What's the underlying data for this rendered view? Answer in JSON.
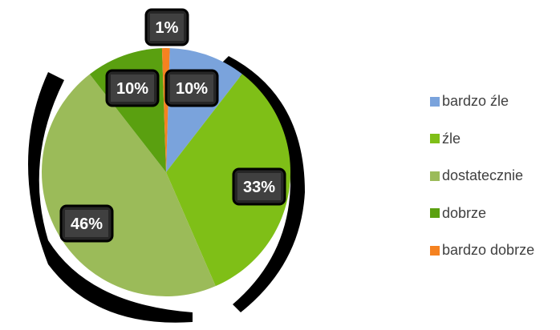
{
  "chart_data": {
    "type": "pie",
    "slices": [
      {
        "name": "bardzo źle",
        "value": 10,
        "label": "10%",
        "color": "#7aa3dc"
      },
      {
        "name": "źle",
        "value": 33,
        "label": "33%",
        "color": "#7fbf17"
      },
      {
        "name": "dostatecznie",
        "value": 46,
        "label": "46%",
        "color": "#9bbb59"
      },
      {
        "name": "dobrze",
        "value": 10,
        "label": "10%",
        "color": "#5aa010"
      },
      {
        "name": "bardzo dobrze",
        "value": 1,
        "label": "1%",
        "color": "#f58220"
      }
    ],
    "legend_position": "right",
    "data_labels": "percent, dark boxes with white bold text"
  }
}
